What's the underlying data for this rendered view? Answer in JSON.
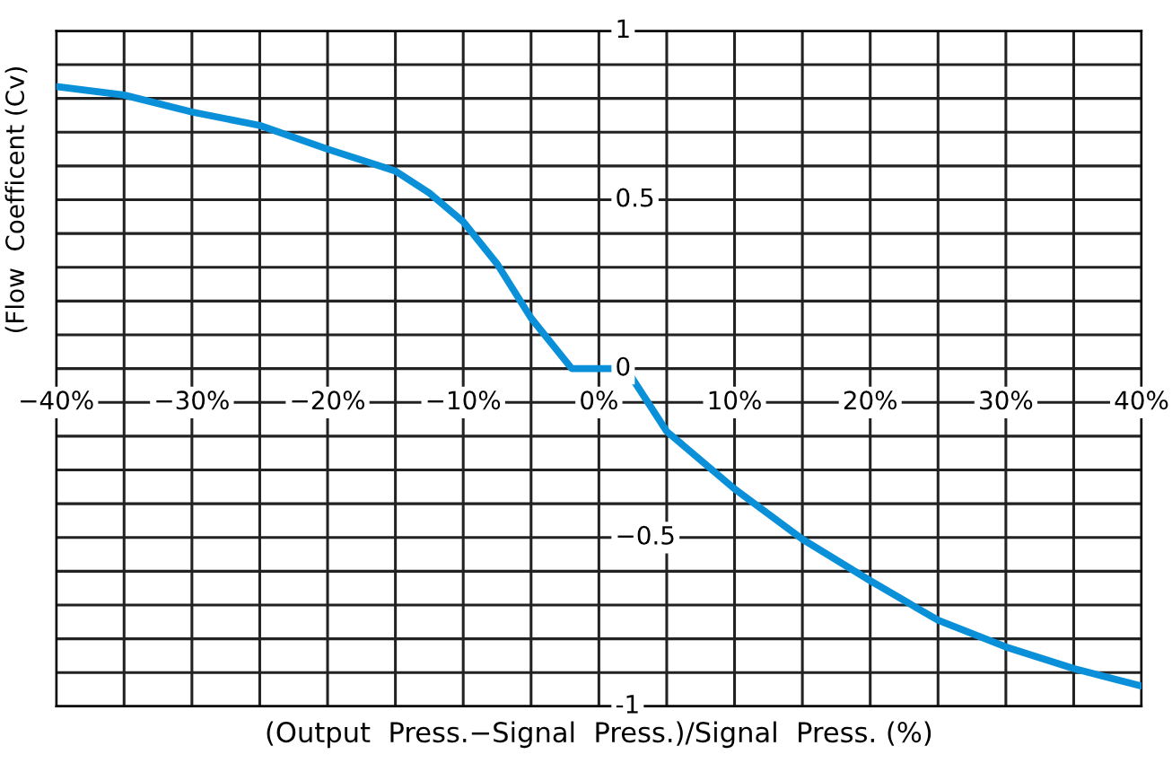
{
  "chart_data": {
    "type": "line",
    "xlabel": "(Output  Press.−Signal  Press.)/Signal  Press. (%)",
    "ylabel": "(Flow  Coefficent (Cv)",
    "x": [
      -40,
      -35,
      -30,
      -25,
      -20,
      -15,
      -12.5,
      -10,
      -7.5,
      -5,
      -2,
      0,
      2,
      5,
      10,
      15,
      20,
      25,
      30,
      35,
      40
    ],
    "series": [
      {
        "color": "#0a90d8",
        "values": [
          0.835,
          0.81,
          0.76,
          0.72,
          0.65,
          0.585,
          0.52,
          0.435,
          0.31,
          0.15,
          0,
          0,
          0,
          -0.186,
          -0.356,
          -0.505,
          -0.628,
          -0.745,
          -0.824,
          -0.888,
          -0.94
        ]
      }
    ],
    "xlim": [
      -40,
      40
    ],
    "ylim": [
      -1,
      1
    ],
    "xticks": [
      {
        "value": -40,
        "label": "−40%"
      },
      {
        "value": -30,
        "label": "−30%"
      },
      {
        "value": -20,
        "label": "−20%"
      },
      {
        "value": -10,
        "label": "−10%"
      },
      {
        "value": 0,
        "label": "0%"
      },
      {
        "value": 10,
        "label": "10%"
      },
      {
        "value": 20,
        "label": "20%"
      },
      {
        "value": 30,
        "label": "30%"
      },
      {
        "value": 40,
        "label": "40%"
      }
    ],
    "yticks": [
      1,
      0.5,
      0,
      {
        "value": -0.5,
        "label": "−0.5"
      },
      -1
    ],
    "grid": true,
    "marker": "none",
    "line_style": "solid"
  }
}
